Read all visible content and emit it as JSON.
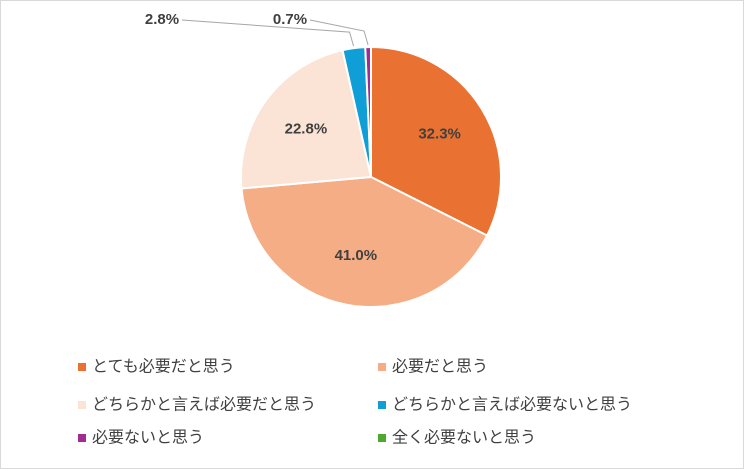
{
  "chart_data": {
    "type": "pie",
    "categories": [
      "とても必要だと思う",
      "必要だと思う",
      "どちらかと言えば必要だと思う",
      "どちらかと言えば必要ないと思う",
      "必要ないと思う",
      "全く必要ないと思う"
    ],
    "values": [
      32.3,
      41.0,
      22.8,
      2.8,
      0.7,
      0
    ],
    "value_labels": [
      "32.3%",
      "41.0%",
      "22.8%",
      "2.8%",
      "0.7%",
      null
    ],
    "colors": [
      "#E97132",
      "#F4AD84",
      "#FBE3D6",
      "#0F9ED5",
      "#A02B93",
      "#4EA72E"
    ],
    "legend": "bottom"
  }
}
